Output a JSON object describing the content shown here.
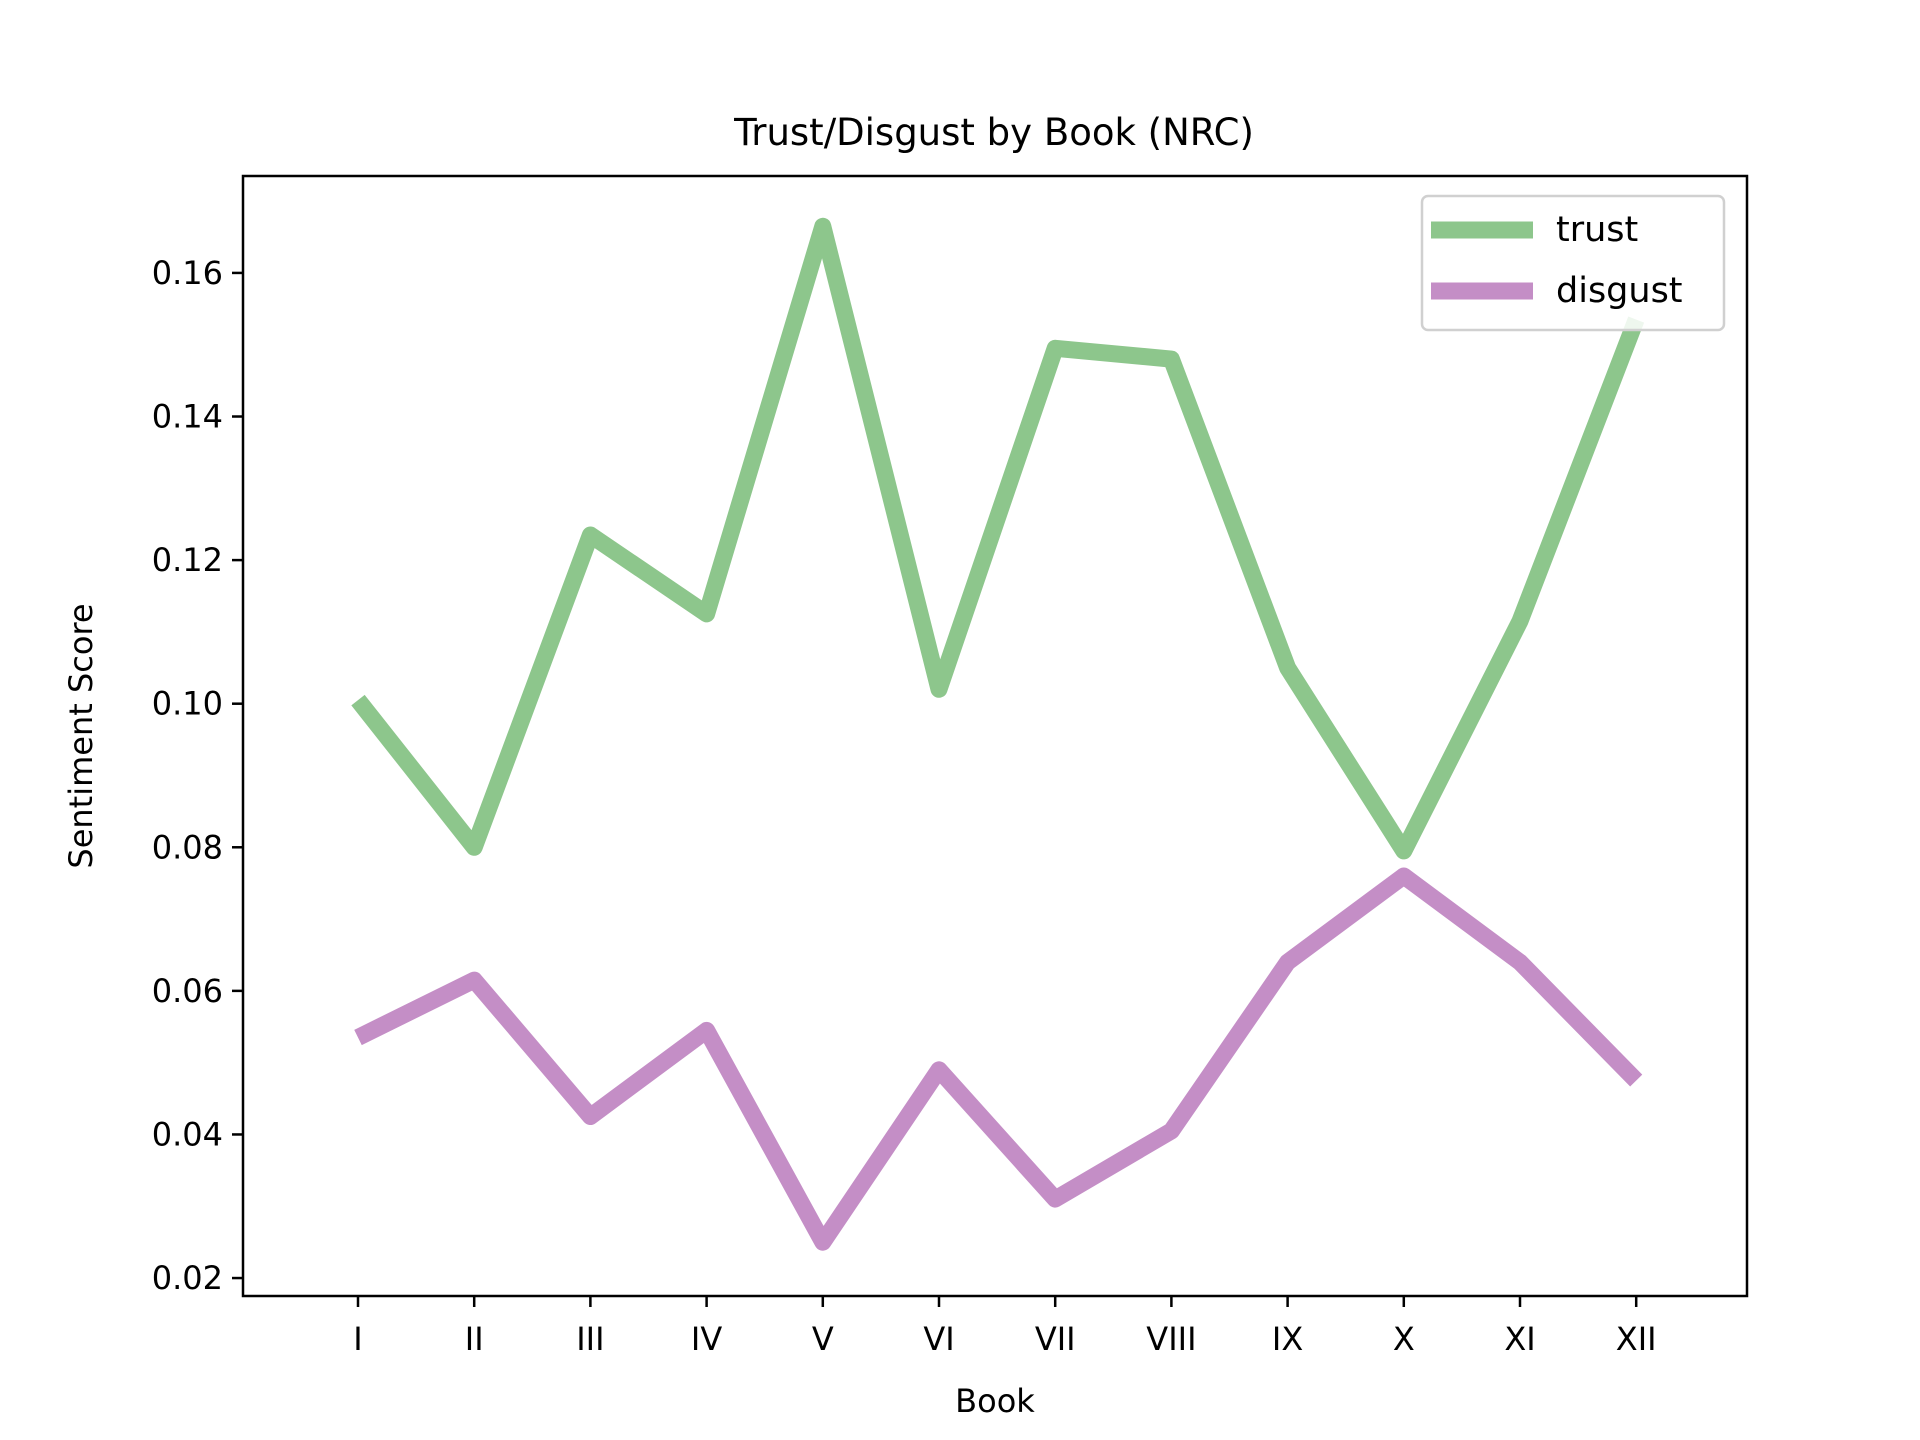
{
  "chart_data": {
    "type": "line",
    "title": "Trust/Disgust by Book (NRC)",
    "xlabel": "Book",
    "ylabel": "Sentiment Score",
    "categories": [
      "I",
      "II",
      "III",
      "IV",
      "V",
      "VI",
      "VII",
      "VIII",
      "IX",
      "X",
      "XI",
      "XII"
    ],
    "series": [
      {
        "name": "trust",
        "color": "#8dc68c",
        "values": [
          0.1005,
          0.08,
          0.1235,
          0.1125,
          0.1665,
          0.102,
          0.1495,
          0.148,
          0.105,
          0.0795,
          0.1115,
          0.1535
        ]
      },
      {
        "name": "disgust",
        "color": "#c48ec6",
        "values": [
          0.0535,
          0.0615,
          0.0425,
          0.0545,
          0.025,
          0.049,
          0.031,
          0.0405,
          0.064,
          0.076,
          0.064,
          0.0475
        ]
      }
    ],
    "ylim": [
      0.0175,
      0.1735
    ],
    "yticks": [
      "0.02",
      "0.04",
      "0.06",
      "0.08",
      "0.10",
      "0.12",
      "0.14",
      "0.16"
    ],
    "legend": "top-right",
    "grid": false
  }
}
